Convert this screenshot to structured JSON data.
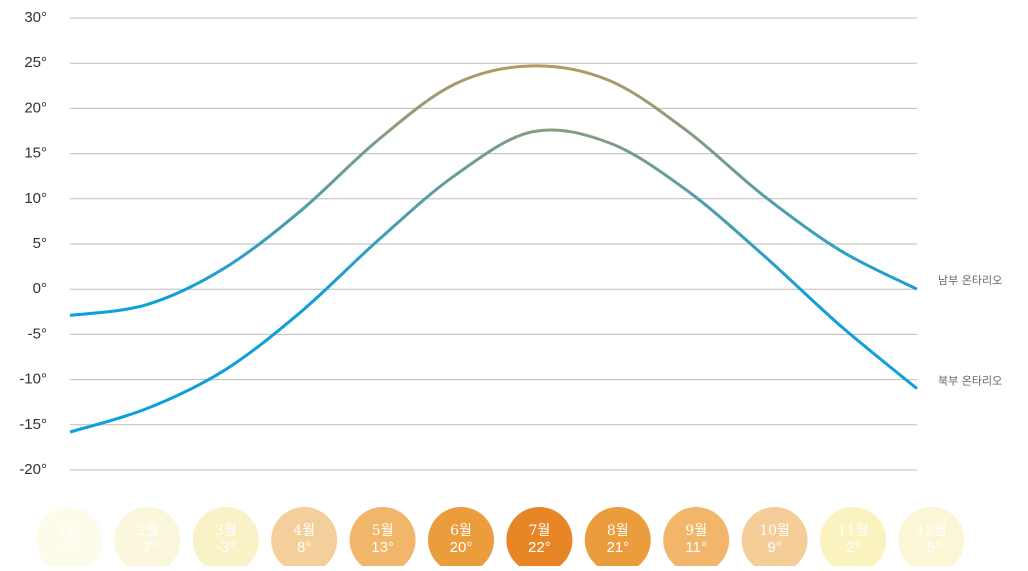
{
  "chart_data": {
    "type": "line",
    "categories": [
      "1월",
      "2월",
      "3월",
      "4월",
      "5월",
      "6월",
      "7월",
      "8월",
      "9월",
      "10월",
      "11월",
      "12월"
    ],
    "series": [
      {
        "name": "남부 온타리오",
        "values": [
          -2.9,
          -1.7,
          2.3,
          8.7,
          16.5,
          22.7,
          24.7,
          23.1,
          17.6,
          10.4,
          4.3,
          0
        ]
      },
      {
        "name": "북부 온타리오",
        "values": [
          -15.8,
          -13.2,
          -9,
          -2.5,
          5.4,
          12.6,
          17.4,
          16.2,
          11,
          3.8,
          -4,
          -11
        ]
      }
    ],
    "line_colors": {
      "cold": "#0fa0da",
      "warm": "#b89a5c"
    },
    "ylim": [
      -20,
      30
    ],
    "yticks": [
      {
        "value": -20,
        "label": "-20°"
      },
      {
        "value": -15,
        "label": "-15°"
      },
      {
        "value": -10,
        "label": "-10°"
      },
      {
        "value": -5,
        "label": "-5°"
      },
      {
        "value": 0,
        "label": "0°"
      },
      {
        "value": 5,
        "label": "5°"
      },
      {
        "value": 10,
        "label": "10°"
      },
      {
        "value": 15,
        "label": "15°"
      },
      {
        "value": 20,
        "label": "20°"
      },
      {
        "value": 25,
        "label": "25°"
      },
      {
        "value": 30,
        "label": "30°"
      }
    ],
    "grid": true,
    "month_averages": {
      "values": [
        -9,
        -7,
        -3,
        8,
        13,
        20,
        22,
        21,
        11,
        9,
        2,
        -5
      ],
      "value_labels": [
        "-9°",
        "-7°",
        "-3°",
        "8°",
        "13°",
        "20°",
        "22°",
        "21°",
        "11°",
        "9°",
        "2°",
        "-5°"
      ],
      "colors": [
        "#fdfbea",
        "#fbf7dc",
        "#f9f2c6",
        "#f5cf9b",
        "#f1b66a",
        "#eb9d3e",
        "#e88626",
        "#eb9c3c",
        "#f1b66a",
        "#f5cd98",
        "#faf2bf",
        "#fbf6d6"
      ]
    }
  }
}
